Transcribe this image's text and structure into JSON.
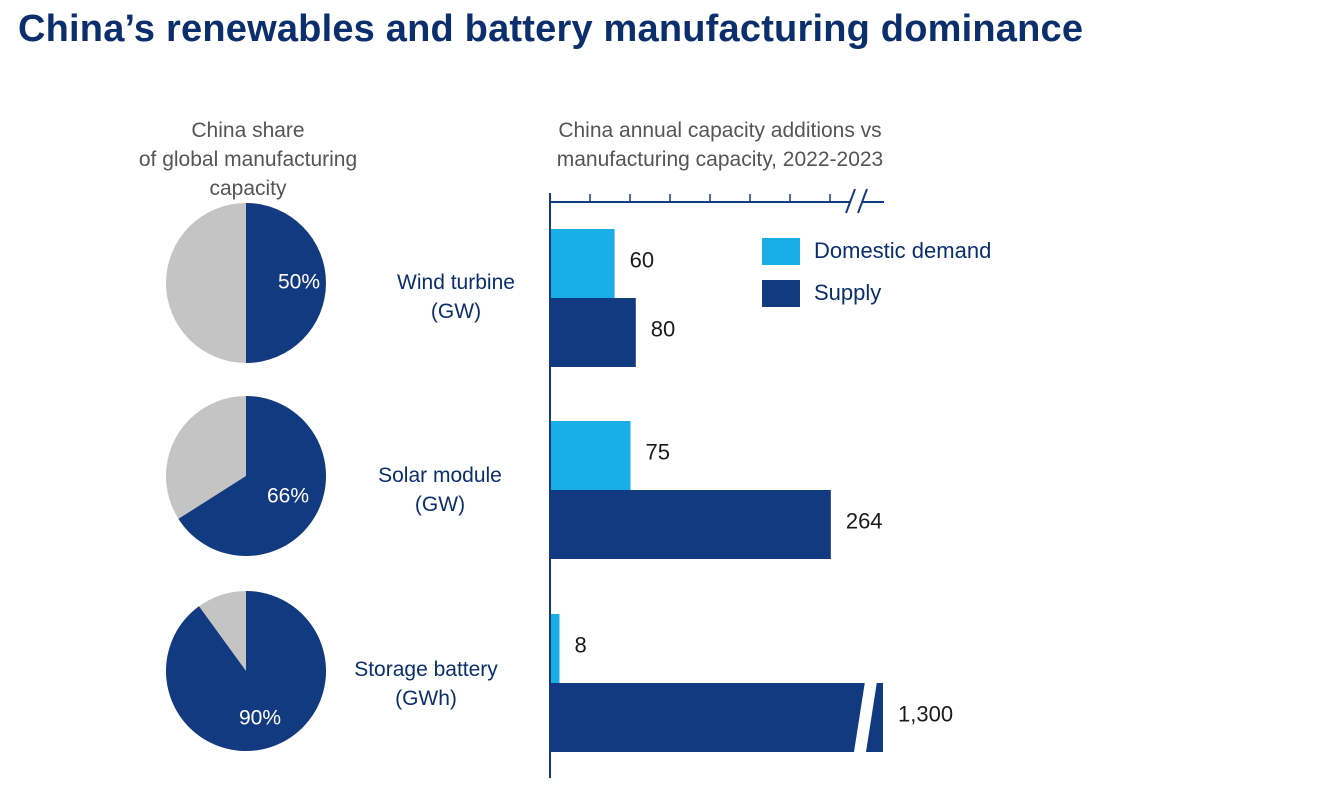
{
  "title": "China’s renewables and battery manufacturing dominance",
  "pie_title": [
    "China share",
    "of global manufacturing",
    "capacity"
  ],
  "bar_title": [
    "China annual capacity additions vs",
    "manufacturing capacity, 2022-2023"
  ],
  "colors": {
    "navy": "#123a80",
    "cyan": "#1aaee6",
    "grey": "#c4c4c4",
    "text": "#0a2f6c"
  },
  "chart_data": [
    {
      "type": "pie",
      "title": "China share of global manufacturing capacity",
      "slices": [
        {
          "category": "Wind turbine",
          "china_share": 50,
          "label": "50%"
        },
        {
          "category": "Solar module",
          "china_share": 66,
          "label": "66%"
        },
        {
          "category": "Storage battery",
          "china_share": 90,
          "label": "90%"
        }
      ]
    },
    {
      "type": "bar",
      "orientation": "horizontal",
      "title": "China annual capacity additions vs manufacturing capacity, 2022-2023",
      "axis_break": true,
      "categories": [
        {
          "name": "Wind turbine",
          "unit": "(GW)"
        },
        {
          "name": "Solar module",
          "unit": "(GW)"
        },
        {
          "name": "Storage battery",
          "unit": "(GWh)"
        }
      ],
      "series": [
        {
          "name": "Domestic demand",
          "color": "#1aaee6",
          "values": [
            60,
            75,
            8
          ],
          "labels": [
            "60",
            "75",
            "8"
          ]
        },
        {
          "name": "Supply",
          "color": "#123a80",
          "values": [
            80,
            264,
            1300
          ],
          "labels": [
            "80",
            "264",
            "1,300"
          ],
          "broken": [
            false,
            false,
            true
          ]
        }
      ],
      "legend_position": "top-right"
    }
  ]
}
